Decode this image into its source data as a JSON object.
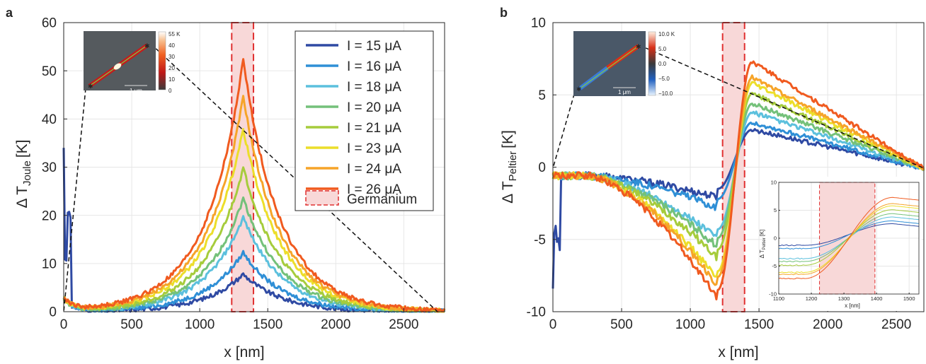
{
  "colors": [
    "#2f4aa3",
    "#2f8fd6",
    "#5cc0dd",
    "#74c17a",
    "#a6cc3c",
    "#ecde2a",
    "#f6a429",
    "#f05a1f"
  ],
  "legend": {
    "series_labels": [
      "I = 15 μA",
      "I = 16 μA",
      "I = 18 μA",
      "I = 20 μA",
      "I = 21 μA",
      "I = 23 μA",
      "I = 24 μA",
      "I = 26 μA"
    ],
    "germanium_label": "Germanium"
  },
  "insets": {
    "a": {
      "colorbar_ticks": [
        "55 K",
        "40",
        "30",
        "20",
        "10",
        "0"
      ],
      "scalebar": "1 μm"
    },
    "b": {
      "colorbar_ticks": [
        "10.0 K",
        "5.0",
        "0.0",
        "−5.0",
        "−10.0"
      ],
      "scalebar": "1 μm"
    }
  },
  "chart_data": [
    {
      "panel": "a",
      "type": "line",
      "xlabel": "x [nm]",
      "ylabel": "Δ T",
      "ylabel_sub": "Joule",
      "ylabel_unit": "[K]",
      "xlim": [
        0,
        2800
      ],
      "ylim": [
        0,
        60
      ],
      "xticks": [
        0,
        500,
        1000,
        1500,
        2000,
        2500
      ],
      "yticks": [
        0,
        10,
        20,
        30,
        40,
        50,
        60
      ],
      "grid": true,
      "legend_position": "top-right",
      "shaded_region": [
        1235,
        1395
      ],
      "series": [
        {
          "name": "I = 15 μA",
          "peak_value": 7.8
        },
        {
          "name": "I = 16 μA",
          "peak_value": 12.3
        },
        {
          "name": "I = 18 μA",
          "peak_value": 19.6
        },
        {
          "name": "I = 20 μA",
          "peak_value": 23.5
        },
        {
          "name": "I = 21 μA",
          "peak_value": 29.8
        },
        {
          "name": "I = 23 μA",
          "peak_value": 37.8
        },
        {
          "name": "I = 24 μA",
          "peak_value": 43.0
        },
        {
          "name": "I = 26 μA",
          "peak_value": 50.4
        }
      ],
      "peak_x": 1320
    },
    {
      "panel": "b",
      "type": "line",
      "xlabel": "x [nm]",
      "ylabel": "Δ T",
      "ylabel_sub": "Peltier",
      "ylabel_unit": "[K]",
      "xlim": [
        0,
        2700
      ],
      "ylim": [
        -10,
        10
      ],
      "xticks": [
        0,
        500,
        1000,
        1500,
        2000,
        2500
      ],
      "yticks": [
        -10,
        -5,
        0,
        5,
        10
      ],
      "grid": true,
      "shaded_region": [
        1235,
        1395
      ],
      "series": [
        {
          "name": "I = 15 μA",
          "min_value": -1.5,
          "max_value": 2.6
        },
        {
          "name": "I = 16 μA",
          "min_value": -2.2,
          "max_value": 3.1
        },
        {
          "name": "I = 18 μA",
          "min_value": -4.3,
          "max_value": 3.8
        },
        {
          "name": "I = 20 μA",
          "min_value": -4.9,
          "max_value": 4.4
        },
        {
          "name": "I = 21 μA",
          "min_value": -5.7,
          "max_value": 5.1
        },
        {
          "name": "I = 23 μA",
          "min_value": -7.2,
          "max_value": 5.8
        },
        {
          "name": "I = 24 μA",
          "min_value": -7.6,
          "max_value": 6.2
        },
        {
          "name": "I = 26 μA",
          "min_value": -8.5,
          "max_value": 7.3
        }
      ],
      "min_x": 1200,
      "max_x": 1450,
      "inset": {
        "type": "line",
        "xlabel": "x [nm]",
        "ylabel": "Δ T",
        "ylabel_sub": "Peltier",
        "ylabel_unit": "[K]",
        "xlim": [
          1100,
          1530
        ],
        "ylim": [
          -10,
          10
        ],
        "xticks": [
          1100,
          1200,
          1300,
          1400,
          1500
        ],
        "yticks": [
          -10,
          -5,
          0,
          5,
          10
        ],
        "shaded_region": [
          1225,
          1395
        ]
      }
    }
  ]
}
